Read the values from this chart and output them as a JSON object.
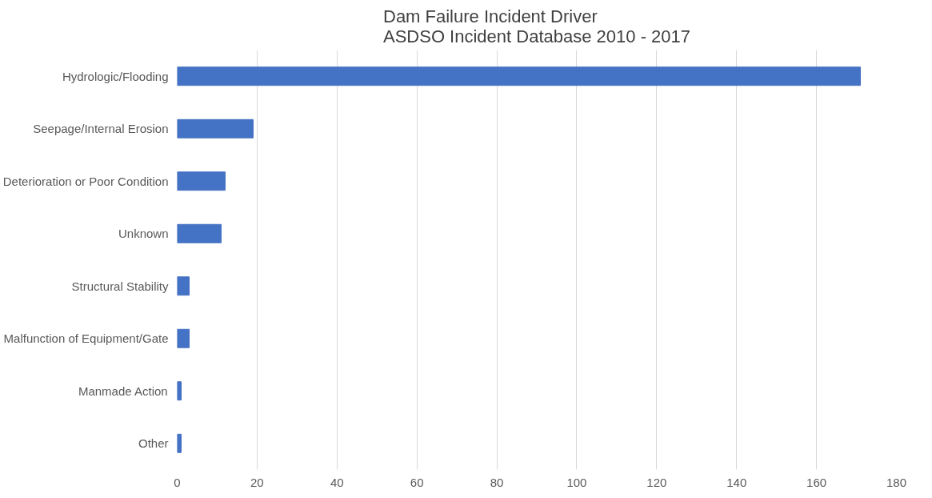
{
  "chart_data": {
    "type": "bar",
    "orientation": "horizontal",
    "title": "Dam Failure Incident Driver\nASDSO Incident Database 2010 - 2017",
    "categories": [
      "Hydrologic/Flooding",
      "Seepage/Internal Erosion",
      "Deterioration or Poor Condition",
      "Unknown",
      "Structural Stability",
      "Malfunction of Equipment/Gate",
      "Manmade Action",
      "Other"
    ],
    "values": [
      171,
      19,
      12,
      11,
      3,
      3,
      1,
      1
    ],
    "color": "#4472c4",
    "xlim": [
      0,
      180
    ],
    "xticks": [
      0,
      20,
      40,
      60,
      80,
      100,
      120,
      140,
      160,
      180
    ],
    "grid": "x"
  }
}
